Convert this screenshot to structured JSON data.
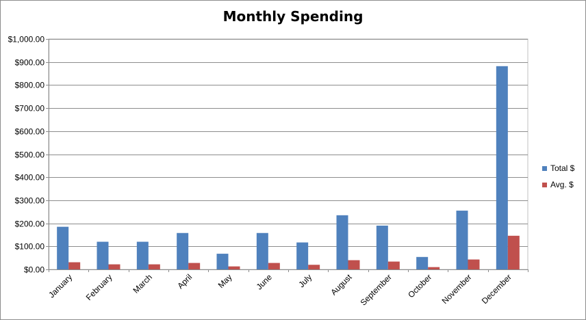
{
  "chart_data": {
    "type": "bar",
    "title": "Monthly Spending",
    "xlabel": "",
    "ylabel": "",
    "categories": [
      "January",
      "February",
      "March",
      "April",
      "May",
      "June",
      "July",
      "August",
      "September",
      "October",
      "November",
      "December"
    ],
    "series": [
      {
        "name": "Total $",
        "color": "#4f81bd",
        "values": [
          185,
          120,
          120,
          158,
          68,
          158,
          117,
          235,
          190,
          54,
          255,
          882
        ]
      },
      {
        "name": "Avg. $",
        "color": "#c0504d",
        "values": [
          31,
          22,
          22,
          28,
          13,
          28,
          20,
          40,
          34,
          10,
          43,
          146
        ]
      }
    ],
    "ylim": [
      0,
      1000
    ],
    "yticks": [
      0,
      100,
      200,
      300,
      400,
      500,
      600,
      700,
      800,
      900,
      1000
    ],
    "ytick_labels": [
      "$0.00",
      "$100.00",
      "$200.00",
      "$300.00",
      "$400.00",
      "$500.00",
      "$600.00",
      "$700.00",
      "$800.00",
      "$900.00",
      "$1,000.00"
    ],
    "grid": true,
    "legend_position": "right"
  }
}
